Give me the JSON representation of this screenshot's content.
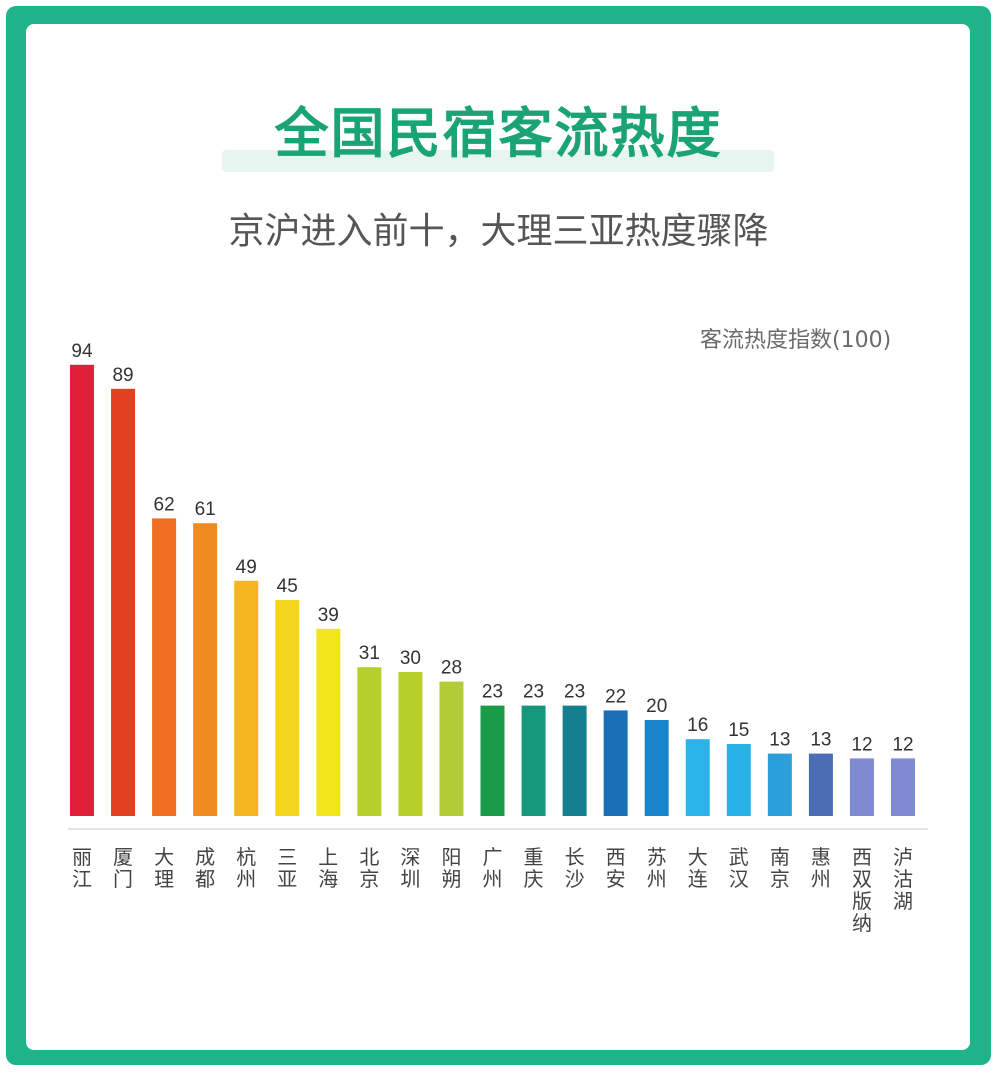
{
  "title": "全国民宿客流热度",
  "subtitle": "京沪进入前十，大理三亚热度骤降",
  "unit_label": "客流热度指数(100)",
  "chart_data": {
    "type": "bar",
    "categories": [
      "丽江",
      "厦门",
      "大理",
      "成都",
      "杭州",
      "三亚",
      "上海",
      "北京",
      "深圳",
      "阳朔",
      "广州",
      "重庆",
      "长沙",
      "西安",
      "苏州",
      "大连",
      "武汉",
      "南京",
      "惠州",
      "西双版纳",
      "泸沽湖"
    ],
    "values": [
      94,
      89,
      62,
      61,
      49,
      45,
      39,
      31,
      30,
      28,
      23,
      23,
      23,
      22,
      20,
      16,
      15,
      13,
      13,
      12,
      12
    ],
    "colors": [
      "#e0203a",
      "#e3401f",
      "#ee6f21",
      "#f08b22",
      "#f5b51f",
      "#f4d520",
      "#f2e51c",
      "#b7cf2a",
      "#b7cf2a",
      "#b0cd35",
      "#1a9b48",
      "#16997a",
      "#157f8e",
      "#1a6fb5",
      "#1985c8",
      "#2ab3e8",
      "#29b2e6",
      "#2a9fda",
      "#4a6db3",
      "#7f8ad1",
      "#7f8ad1"
    ],
    "ylim": [
      0,
      100
    ],
    "grid": false,
    "legend": "none"
  }
}
